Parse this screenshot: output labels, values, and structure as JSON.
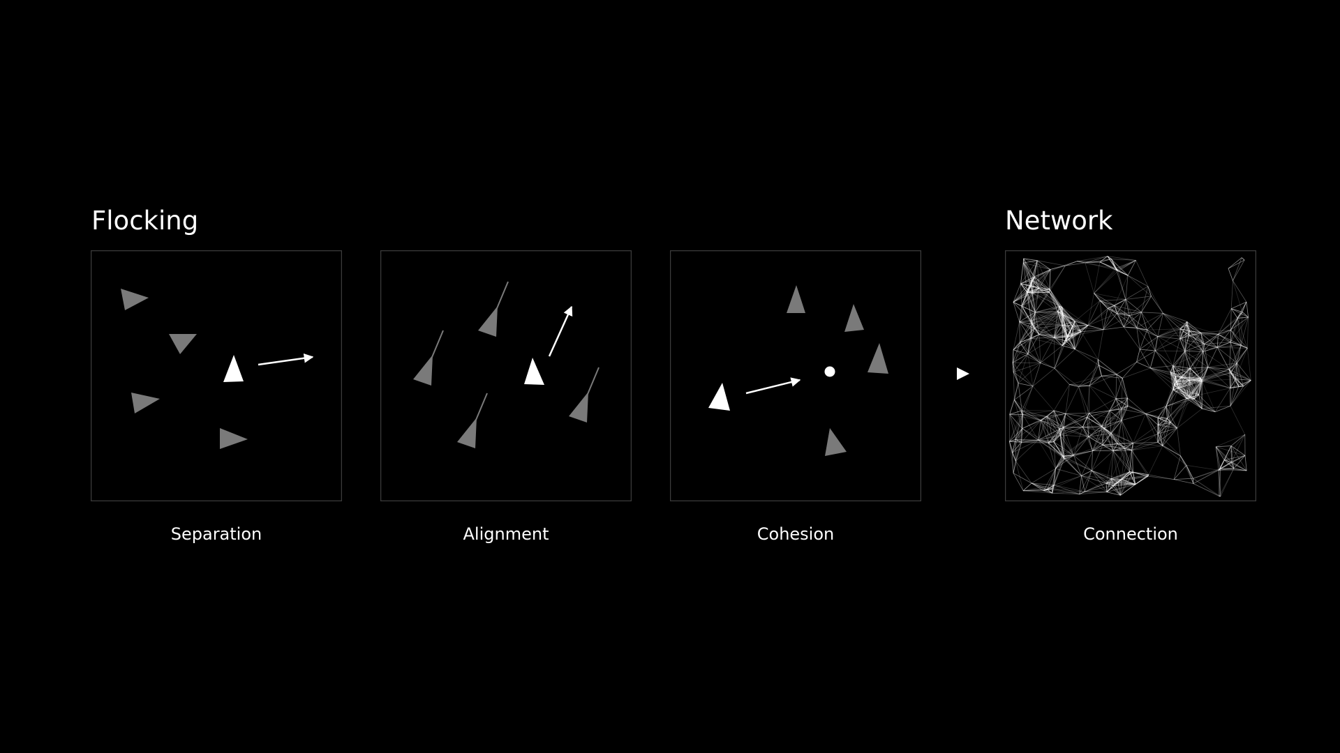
{
  "colors": {
    "background": "#000000",
    "frame": "#3c3c3c",
    "active_boid": "#ffffff",
    "neighbor_boid": "#7a7a7a",
    "network_line": "#ffffff"
  },
  "sections": {
    "flocking": {
      "title": "Flocking"
    },
    "network": {
      "title": "Network"
    }
  },
  "panels": [
    {
      "id": "separation",
      "caption": "Separation"
    },
    {
      "id": "alignment",
      "caption": "Alignment"
    },
    {
      "id": "cohesion",
      "caption": "Cohesion"
    },
    {
      "id": "connection",
      "caption": "Connection"
    }
  ],
  "icons": {
    "flow": "play-triangle-icon",
    "boid": "triangle-boid-icon",
    "center_of_mass": "dot-icon"
  }
}
